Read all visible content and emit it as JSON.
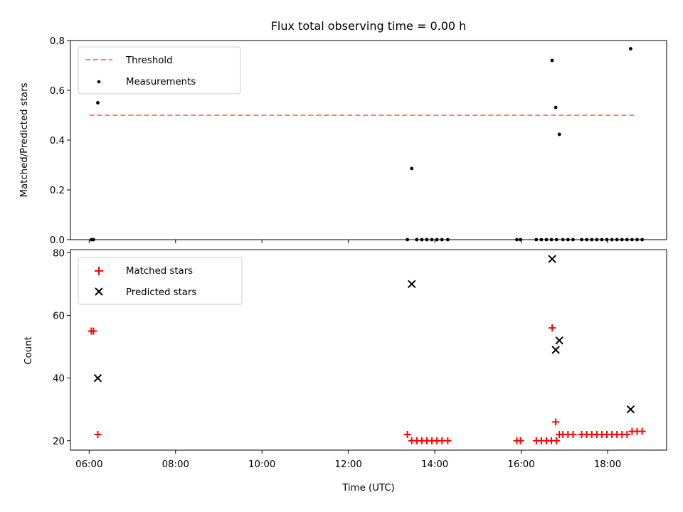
{
  "chart_data": [
    {
      "type": "scatter",
      "title": "Flux total observing time = 0.00 h",
      "xlabel": "",
      "ylabel": "Matched/Predicted stars",
      "ylim": [
        0,
        0.8
      ],
      "xlim": [
        "05:34",
        "19:22"
      ],
      "y_ticks": [
        "0.0",
        "0.2",
        "0.4",
        "0.6",
        "0.8"
      ],
      "legend": {
        "placement": "top-left",
        "entries": [
          "Threshold",
          "Measurements"
        ]
      },
      "threshold": {
        "name": "Threshold",
        "value": 0.5,
        "x_start": "06:00",
        "x_end": "18:40",
        "color": "#ff7f7f",
        "style": "dashed"
      },
      "series": [
        {
          "name": "Measurements",
          "color": "#000000",
          "marker": "dot",
          "points": [
            [
              "06:03",
              0.0
            ],
            [
              "06:06",
              0.0
            ],
            [
              "06:12",
              0.55
            ],
            [
              "13:22",
              0.0
            ],
            [
              "13:28",
              0.286
            ],
            [
              "13:35",
              0.0
            ],
            [
              "13:42",
              0.0
            ],
            [
              "13:49",
              0.0
            ],
            [
              "13:56",
              0.0
            ],
            [
              "14:03",
              0.0
            ],
            [
              "14:10",
              0.0
            ],
            [
              "14:18",
              0.0
            ],
            [
              "15:54",
              0.0
            ],
            [
              "15:59",
              0.0
            ],
            [
              "16:21",
              0.0
            ],
            [
              "16:28",
              0.0
            ],
            [
              "16:35",
              0.0
            ],
            [
              "16:42",
              0.0
            ],
            [
              "16:49",
              0.0
            ],
            [
              "16:43",
              0.72
            ],
            [
              "16:48",
              0.531
            ],
            [
              "16:53",
              0.423
            ],
            [
              "16:58",
              0.0
            ],
            [
              "17:05",
              0.0
            ],
            [
              "17:12",
              0.0
            ],
            [
              "17:24",
              0.0
            ],
            [
              "17:31",
              0.0
            ],
            [
              "17:38",
              0.0
            ],
            [
              "17:45",
              0.0
            ],
            [
              "17:52",
              0.0
            ],
            [
              "17:59",
              0.0
            ],
            [
              "18:06",
              0.0
            ],
            [
              "18:13",
              0.0
            ],
            [
              "18:20",
              0.0
            ],
            [
              "18:27",
              0.0
            ],
            [
              "18:34",
              0.0
            ],
            [
              "18:41",
              0.0
            ],
            [
              "18:48",
              0.0
            ],
            [
              "18:32",
              0.767
            ]
          ]
        }
      ]
    },
    {
      "type": "scatter",
      "title": "",
      "xlabel": "Time (UTC)",
      "ylabel": "Count",
      "ylim": [
        17,
        81
      ],
      "xlim": [
        "05:34",
        "19:22"
      ],
      "x_ticks": [
        "06:00",
        "08:00",
        "10:00",
        "12:00",
        "14:00",
        "16:00",
        "18:00"
      ],
      "y_ticks": [
        "20",
        "40",
        "60",
        "80"
      ],
      "legend": {
        "placement": "top-left",
        "entries": [
          "Matched stars",
          "Predicted stars"
        ]
      },
      "series": [
        {
          "name": "Matched stars",
          "color": "#ff0000",
          "marker": "plus",
          "points": [
            [
              "06:03",
              55
            ],
            [
              "06:06",
              55
            ],
            [
              "06:12",
              22
            ],
            [
              "13:22",
              22
            ],
            [
              "13:28",
              20
            ],
            [
              "13:35",
              20
            ],
            [
              "13:42",
              20
            ],
            [
              "13:49",
              20
            ],
            [
              "13:56",
              20
            ],
            [
              "14:03",
              20
            ],
            [
              "14:10",
              20
            ],
            [
              "14:18",
              20
            ],
            [
              "15:54",
              20
            ],
            [
              "15:59",
              20
            ],
            [
              "16:21",
              20
            ],
            [
              "16:28",
              20
            ],
            [
              "16:35",
              20
            ],
            [
              "16:42",
              20
            ],
            [
              "16:49",
              20
            ],
            [
              "16:43",
              56
            ],
            [
              "16:48",
              26
            ],
            [
              "16:53",
              22
            ],
            [
              "16:58",
              22
            ],
            [
              "17:05",
              22
            ],
            [
              "17:12",
              22
            ],
            [
              "17:24",
              22
            ],
            [
              "17:31",
              22
            ],
            [
              "17:38",
              22
            ],
            [
              "17:45",
              22
            ],
            [
              "17:52",
              22
            ],
            [
              "17:59",
              22
            ],
            [
              "18:06",
              22
            ],
            [
              "18:13",
              22
            ],
            [
              "18:20",
              22
            ],
            [
              "18:27",
              22
            ],
            [
              "18:34",
              23
            ],
            [
              "18:41",
              23
            ],
            [
              "18:48",
              23
            ]
          ]
        },
        {
          "name": "Predicted stars",
          "color": "#000000",
          "marker": "x",
          "points": [
            [
              "06:12",
              40
            ],
            [
              "13:28",
              70
            ],
            [
              "16:43",
              78
            ],
            [
              "16:48",
              49
            ],
            [
              "16:53",
              52
            ],
            [
              "18:32",
              30
            ]
          ]
        }
      ]
    }
  ]
}
